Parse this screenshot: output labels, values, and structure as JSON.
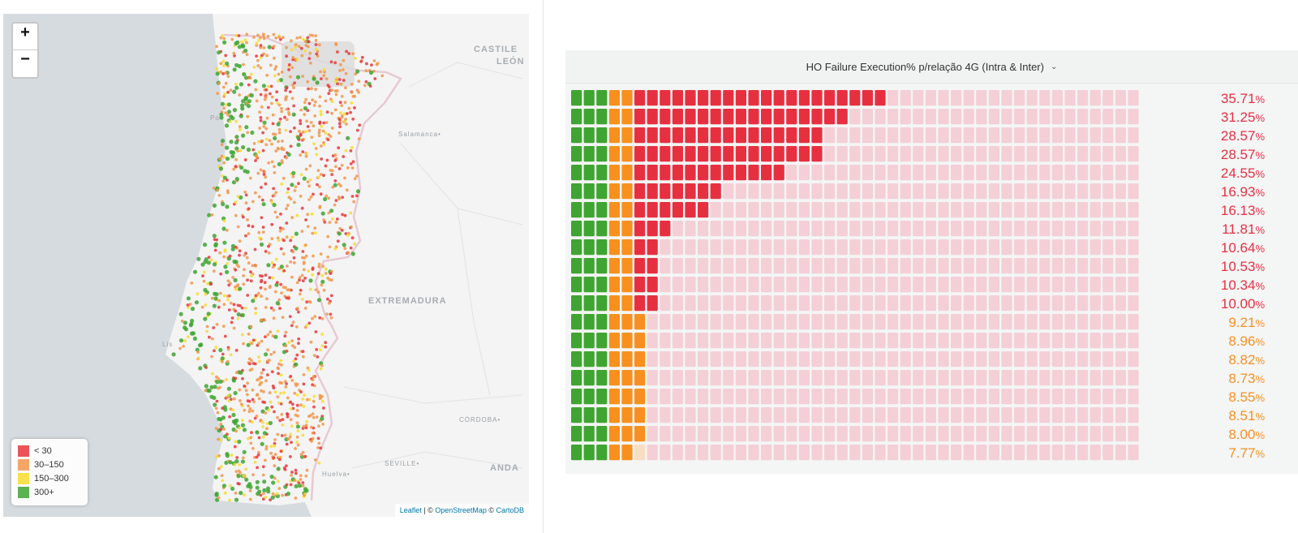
{
  "map": {
    "zoom_in_label": "+",
    "zoom_out_label": "−",
    "regions": {
      "castile": "CASTILE",
      "leon": "LEÓN",
      "extremadura": "EXTREMADURA",
      "andalucia": "ANDA",
      "salamanca": "Salamanca•",
      "cordoba": "CÓRDOBA•",
      "seville": "SEVILLE•",
      "huelva": "Huelva•",
      "porto": "Po",
      "lisboa": "Lis"
    },
    "legend": [
      {
        "label": "< 30",
        "color": "#e8373c"
      },
      {
        "label": "30–150",
        "color": "#f2964b"
      },
      {
        "label": "150–300",
        "color": "#f7dc2e"
      },
      {
        "label": "300+",
        "color": "#3ea531"
      }
    ],
    "attribution": {
      "leaflet": "Leaflet",
      "sep1": " | © ",
      "osm": "OpenStreetMap",
      "sep2": " © ",
      "carto": "CartoDB"
    },
    "colors": {
      "water": "#d6dbe0",
      "land": "#f4f4f4",
      "border": "#e6c9d4"
    }
  },
  "panel": {
    "title": "HO Failure Execution% p/relação 4G (Intra & Inter)",
    "chevron": "⌄",
    "waffle": {
      "columns": 45,
      "colors": {
        "green": "#3ea531",
        "orange": "#f7901e",
        "red": "#e63040",
        "red_empty": "#f4cfd6",
        "orange_empty": "#f8dcc3"
      },
      "rows": [
        {
          "value": 35.71,
          "label": "35.71",
          "unit": "%"
        },
        {
          "value": 31.25,
          "label": "31.25",
          "unit": "%"
        },
        {
          "value": 28.57,
          "label": "28.57",
          "unit": "%"
        },
        {
          "value": 28.57,
          "label": "28.57",
          "unit": "%"
        },
        {
          "value": 24.55,
          "label": "24.55",
          "unit": "%"
        },
        {
          "value": 16.93,
          "label": "16.93",
          "unit": "%"
        },
        {
          "value": 16.13,
          "label": "16.13",
          "unit": "%"
        },
        {
          "value": 11.81,
          "label": "11.81",
          "unit": "%"
        },
        {
          "value": 10.64,
          "label": "10.64",
          "unit": "%"
        },
        {
          "value": 10.53,
          "label": "10.53",
          "unit": "%"
        },
        {
          "value": 10.34,
          "label": "10.34",
          "unit": "%"
        },
        {
          "value": 10.0,
          "label": "10.00",
          "unit": "%"
        },
        {
          "value": 9.21,
          "label": "9.21",
          "unit": "%"
        },
        {
          "value": 8.96,
          "label": "8.96",
          "unit": "%"
        },
        {
          "value": 8.82,
          "label": "8.82",
          "unit": "%"
        },
        {
          "value": 8.73,
          "label": "8.73",
          "unit": "%"
        },
        {
          "value": 8.55,
          "label": "8.55",
          "unit": "%"
        },
        {
          "value": 8.51,
          "label": "8.51",
          "unit": "%"
        },
        {
          "value": 8.0,
          "label": "8.00",
          "unit": "%"
        },
        {
          "value": 7.77,
          "label": "7.77",
          "unit": "%"
        }
      ]
    }
  }
}
